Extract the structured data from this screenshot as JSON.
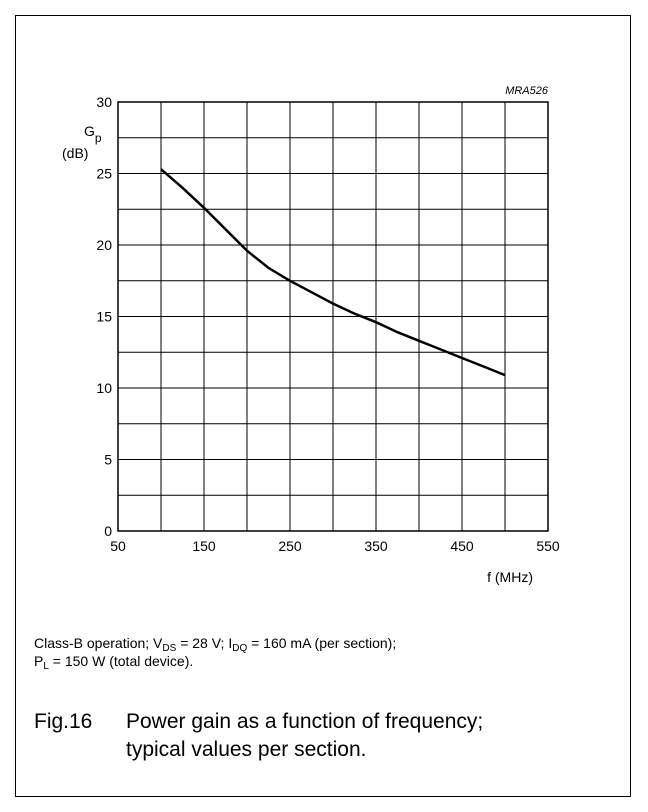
{
  "chart_data": {
    "type": "line",
    "code": "MRA526",
    "ylabel": "G",
    "ylabel_sub": "p",
    "yunit": "(dB)",
    "xlabel": "f (MHz)",
    "xlim": [
      50,
      550
    ],
    "ylim": [
      0,
      30
    ],
    "x_ticks": [
      50,
      150,
      250,
      350,
      450,
      550
    ],
    "y_ticks": [
      0,
      5,
      10,
      15,
      20,
      25,
      30
    ],
    "x_grid_step": 50,
    "y_grid_step": 2.5,
    "grid": true,
    "series": [
      {
        "x": [
          100,
          125,
          150,
          175,
          200,
          225,
          250,
          275,
          300,
          325,
          350,
          375,
          400,
          425,
          450,
          475,
          500
        ],
        "y": [
          25.3,
          24.0,
          22.6,
          21.1,
          19.6,
          18.4,
          17.5,
          16.7,
          15.9,
          15.2,
          14.6,
          13.9,
          13.3,
          12.7,
          12.1,
          11.5,
          10.9
        ]
      }
    ]
  },
  "caption": {
    "line1_pre": "Class-B operation; V",
    "line1_sub1": "DS",
    "line1_mid": " = 28 V; I",
    "line1_sub2": "DQ",
    "line1_post": " = 160 mA (per section);",
    "line2_pre": "P",
    "line2_sub": "L",
    "line2_post": " = 150 W (total device)."
  },
  "figure": {
    "number": "Fig.16",
    "title_line1": "Power gain as a function of frequency;",
    "title_line2": "typical values per section."
  }
}
